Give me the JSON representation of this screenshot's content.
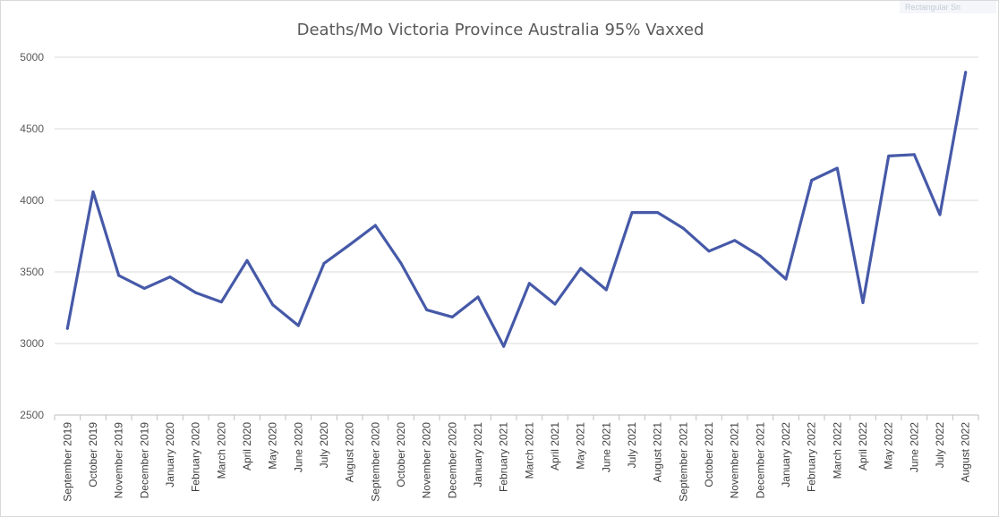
{
  "overlay": {
    "label": "Rectangular Sn"
  },
  "chart_data": {
    "type": "line",
    "title": "Deaths/Mo Victoria Province Australia  95% Vaxxed",
    "xlabel": "",
    "ylabel": "",
    "ylim": [
      2500,
      5000
    ],
    "yticks": [
      2500,
      3000,
      3500,
      4000,
      4500,
      5000
    ],
    "grid": true,
    "legend": "none",
    "color": "#4659a8",
    "categories": [
      "September 2019",
      "October 2019",
      "November 2019",
      "December 2019",
      "January 2020",
      "February 2020",
      "March 2020",
      "April 2020",
      "May 2020",
      "June 2020",
      "July 2020",
      "August 2020",
      "September 2020",
      "October 2020",
      "November 2020",
      "December 2020",
      "January 2021",
      "February 2021",
      "March 2021",
      "April 2021",
      "May 2021",
      "June 2021",
      "July 2021",
      "August 2021",
      "September 2021",
      "October 2021",
      "November 2021",
      "December 2021",
      "January 2022",
      "February 2022",
      "March 2022",
      "April 2022",
      "May 2022",
      "June 2022",
      "July 2022",
      "August 2022"
    ],
    "series": [
      {
        "name": "Deaths",
        "values": [
          3105,
          4060,
          3475,
          3385,
          3465,
          3355,
          3290,
          3580,
          3270,
          3125,
          3560,
          3690,
          3825,
          3560,
          3235,
          3185,
          3325,
          2980,
          3420,
          3275,
          3525,
          3375,
          3915,
          3915,
          3805,
          3645,
          3720,
          3610,
          3450,
          4140,
          4225,
          3285,
          4310,
          4320,
          3900,
          4895
        ]
      }
    ]
  }
}
